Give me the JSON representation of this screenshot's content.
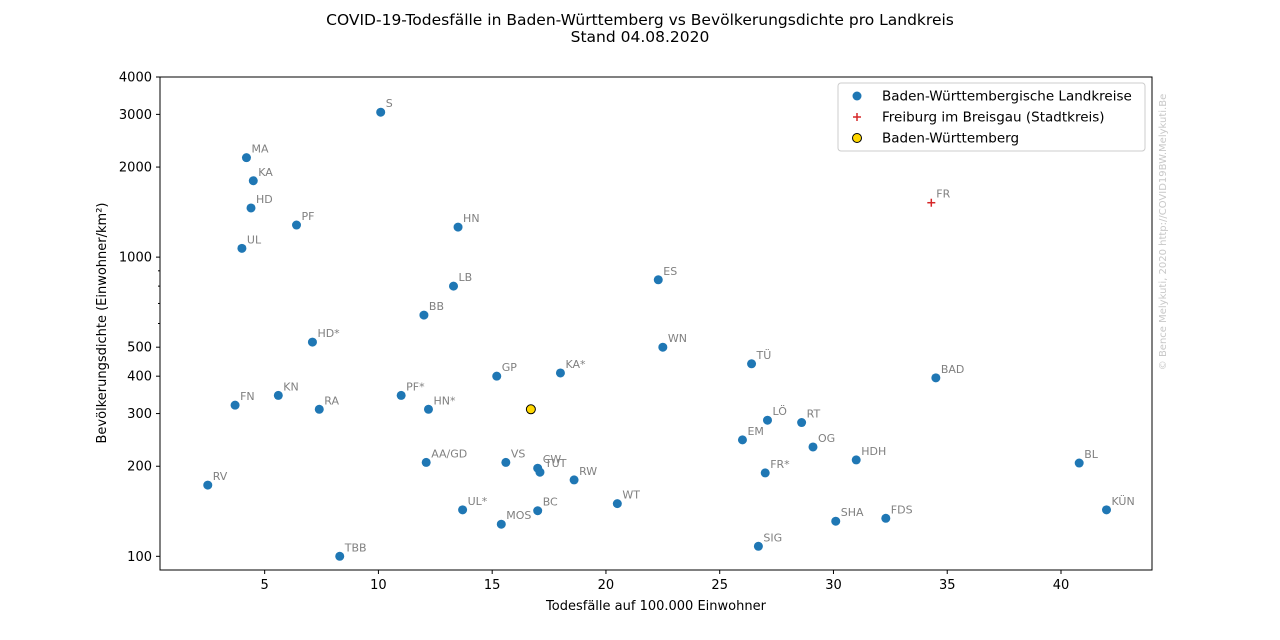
{
  "chart_data": {
    "type": "scatter",
    "title": "COVID-19-Todesfälle in Baden-Württemberg vs Bevölkerungsdichte pro Landkreis",
    "subtitle": "Stand 04.08.2020",
    "xlabel": "Todesfälle auf 100.000 Einwohner",
    "ylabel": "Bevölkerungsdichte (Einwohner/km²)",
    "y_scale": "log",
    "xlim": [
      0.4,
      44
    ],
    "ylim": [
      90,
      4000
    ],
    "x_ticks": [
      5,
      10,
      15,
      20,
      25,
      30,
      35,
      40
    ],
    "x_tick_labels": [
      "5",
      "10",
      "15",
      "20",
      "25",
      "30",
      "35",
      "40"
    ],
    "y_ticks": [
      100,
      200,
      300,
      400,
      500,
      1000,
      2000,
      3000,
      4000
    ],
    "y_tick_labels": [
      "100",
      "200",
      "300",
      "400",
      "500",
      "1000",
      "2000",
      "3000",
      "4000"
    ],
    "grid": false,
    "legend_position": "top-right",
    "colors": {
      "landkreise": "#1f77b4",
      "freiburg": "#d62728",
      "bw_fill": "#ffd700",
      "bw_edge": "#000000"
    },
    "series": [
      {
        "name": "Baden-Württembergische Landkreise",
        "marker": "circle",
        "points": [
          {
            "label": "S",
            "x": 10.1,
            "y": 3050
          },
          {
            "label": "MA",
            "x": 4.2,
            "y": 2150
          },
          {
            "label": "KA",
            "x": 4.5,
            "y": 1800
          },
          {
            "label": "HD",
            "x": 4.4,
            "y": 1460
          },
          {
            "label": "PF",
            "x": 6.4,
            "y": 1280
          },
          {
            "label": "UL",
            "x": 4.0,
            "y": 1070
          },
          {
            "label": "HN",
            "x": 13.5,
            "y": 1260
          },
          {
            "label": "LB",
            "x": 13.3,
            "y": 800
          },
          {
            "label": "BB",
            "x": 12.0,
            "y": 640
          },
          {
            "label": "HD*",
            "x": 7.1,
            "y": 520
          },
          {
            "label": "ES",
            "x": 22.3,
            "y": 840
          },
          {
            "label": "WN",
            "x": 22.5,
            "y": 500
          },
          {
            "label": "TÜ",
            "x": 26.4,
            "y": 440
          },
          {
            "label": "BAD",
            "x": 34.5,
            "y": 395
          },
          {
            "label": "KA*",
            "x": 18.0,
            "y": 410
          },
          {
            "label": "GP",
            "x": 15.2,
            "y": 400
          },
          {
            "label": "FN",
            "x": 3.7,
            "y": 320
          },
          {
            "label": "KN",
            "x": 5.6,
            "y": 345
          },
          {
            "label": "RA",
            "x": 7.4,
            "y": 310
          },
          {
            "label": "PF*",
            "x": 11.0,
            "y": 345
          },
          {
            "label": "HN*",
            "x": 12.2,
            "y": 310
          },
          {
            "label": "LÖ",
            "x": 27.1,
            "y": 285
          },
          {
            "label": "RT",
            "x": 28.6,
            "y": 280
          },
          {
            "label": "EM",
            "x": 26.0,
            "y": 245
          },
          {
            "label": "OG",
            "x": 29.1,
            "y": 232
          },
          {
            "label": "HDH",
            "x": 31.0,
            "y": 210
          },
          {
            "label": "BL",
            "x": 40.8,
            "y": 205
          },
          {
            "label": "AA/GD",
            "x": 12.1,
            "y": 206
          },
          {
            "label": "VS",
            "x": 15.6,
            "y": 206
          },
          {
            "label": "CW",
            "x": 17.0,
            "y": 197
          },
          {
            "label": "TUT",
            "x": 17.1,
            "y": 191
          },
          {
            "label": "FR*",
            "x": 27.0,
            "y": 190
          },
          {
            "label": "RW",
            "x": 18.6,
            "y": 180
          },
          {
            "label": "RV",
            "x": 2.5,
            "y": 173
          },
          {
            "label": "WT",
            "x": 20.5,
            "y": 150
          },
          {
            "label": "UL*",
            "x": 13.7,
            "y": 143
          },
          {
            "label": "BC",
            "x": 17.0,
            "y": 142
          },
          {
            "label": "MOS",
            "x": 15.4,
            "y": 128
          },
          {
            "label": "KÜN",
            "x": 42.0,
            "y": 143
          },
          {
            "label": "SHA",
            "x": 30.1,
            "y": 131
          },
          {
            "label": "FDS",
            "x": 32.3,
            "y": 134
          },
          {
            "label": "SIG",
            "x": 26.7,
            "y": 108
          },
          {
            "label": "TBB",
            "x": 8.3,
            "y": 100
          }
        ]
      },
      {
        "name": "Freiburg im Breisgau (Stadtkreis)",
        "marker": "plus",
        "points": [
          {
            "label": "FR",
            "x": 34.3,
            "y": 1520
          }
        ]
      },
      {
        "name": "Baden-Württemberg",
        "marker": "circle-gold",
        "points": [
          {
            "label": "",
            "x": 16.7,
            "y": 310
          }
        ]
      }
    ],
    "watermark": "© Bence Melykuti, 2020  http://COVID19BW.Melykuti.Be"
  }
}
